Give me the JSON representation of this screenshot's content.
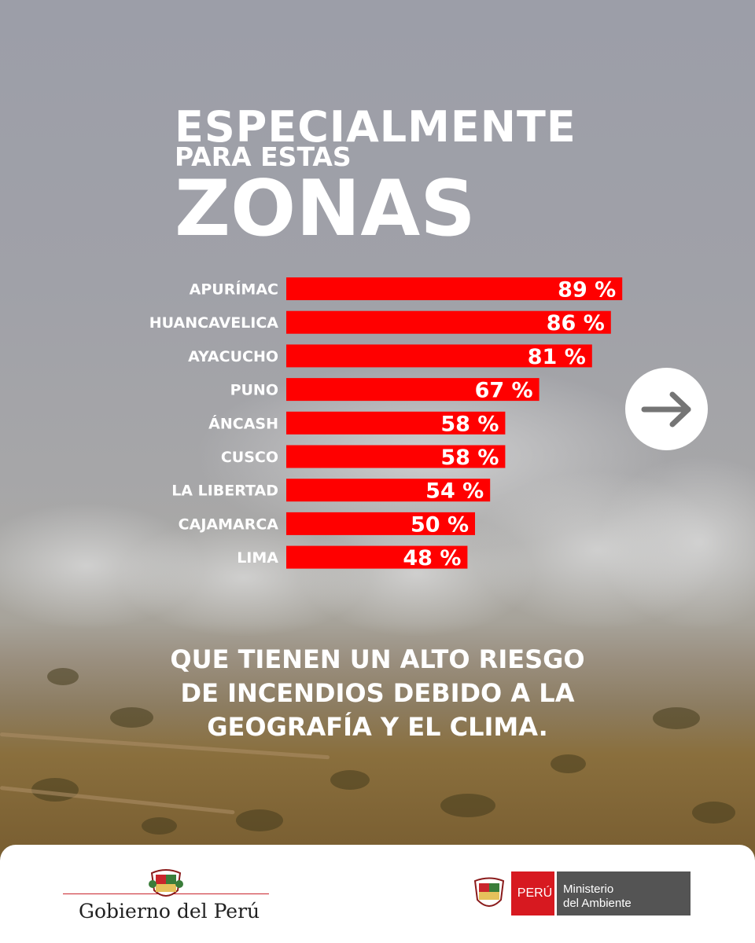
{
  "headline": {
    "line1": "ESPECIALMENTE",
    "line2": "PARA ESTAS",
    "line3": "ZONAS"
  },
  "chart_data": {
    "type": "bar",
    "orientation": "horizontal",
    "categories": [
      "APURÍMAC",
      "HUANCAVELICA",
      "AYACUCHO",
      "PUNO",
      "ÁNCASH",
      "CUSCO",
      "LA LIBERTAD",
      "CAJAMARCA",
      "LIMA"
    ],
    "values": [
      89,
      86,
      81,
      67,
      58,
      58,
      54,
      50,
      48
    ],
    "value_labels": [
      "89 %",
      "86 %",
      "81 %",
      "67 %",
      "58 %",
      "58 %",
      "54 %",
      "50 %",
      "48 %"
    ],
    "bar_color": "#ff0000",
    "grid": false,
    "legend": "none"
  },
  "subtitle": {
    "line1": "QUE TIENEN UN ALTO RIESGO",
    "line2": "DE INCENDIOS DEBIDO A LA",
    "line3": "GEOGRAFÍA Y EL CLIMA."
  },
  "next_button": {
    "icon": "arrow-right-icon"
  },
  "footer": {
    "gobierno": "Gobierno del Perú",
    "peru": "PERÚ",
    "ministerio_line1": "Ministerio",
    "ministerio_line2": "del Ambiente",
    "colors": {
      "red": "#d71920",
      "gray": "#545454"
    }
  }
}
